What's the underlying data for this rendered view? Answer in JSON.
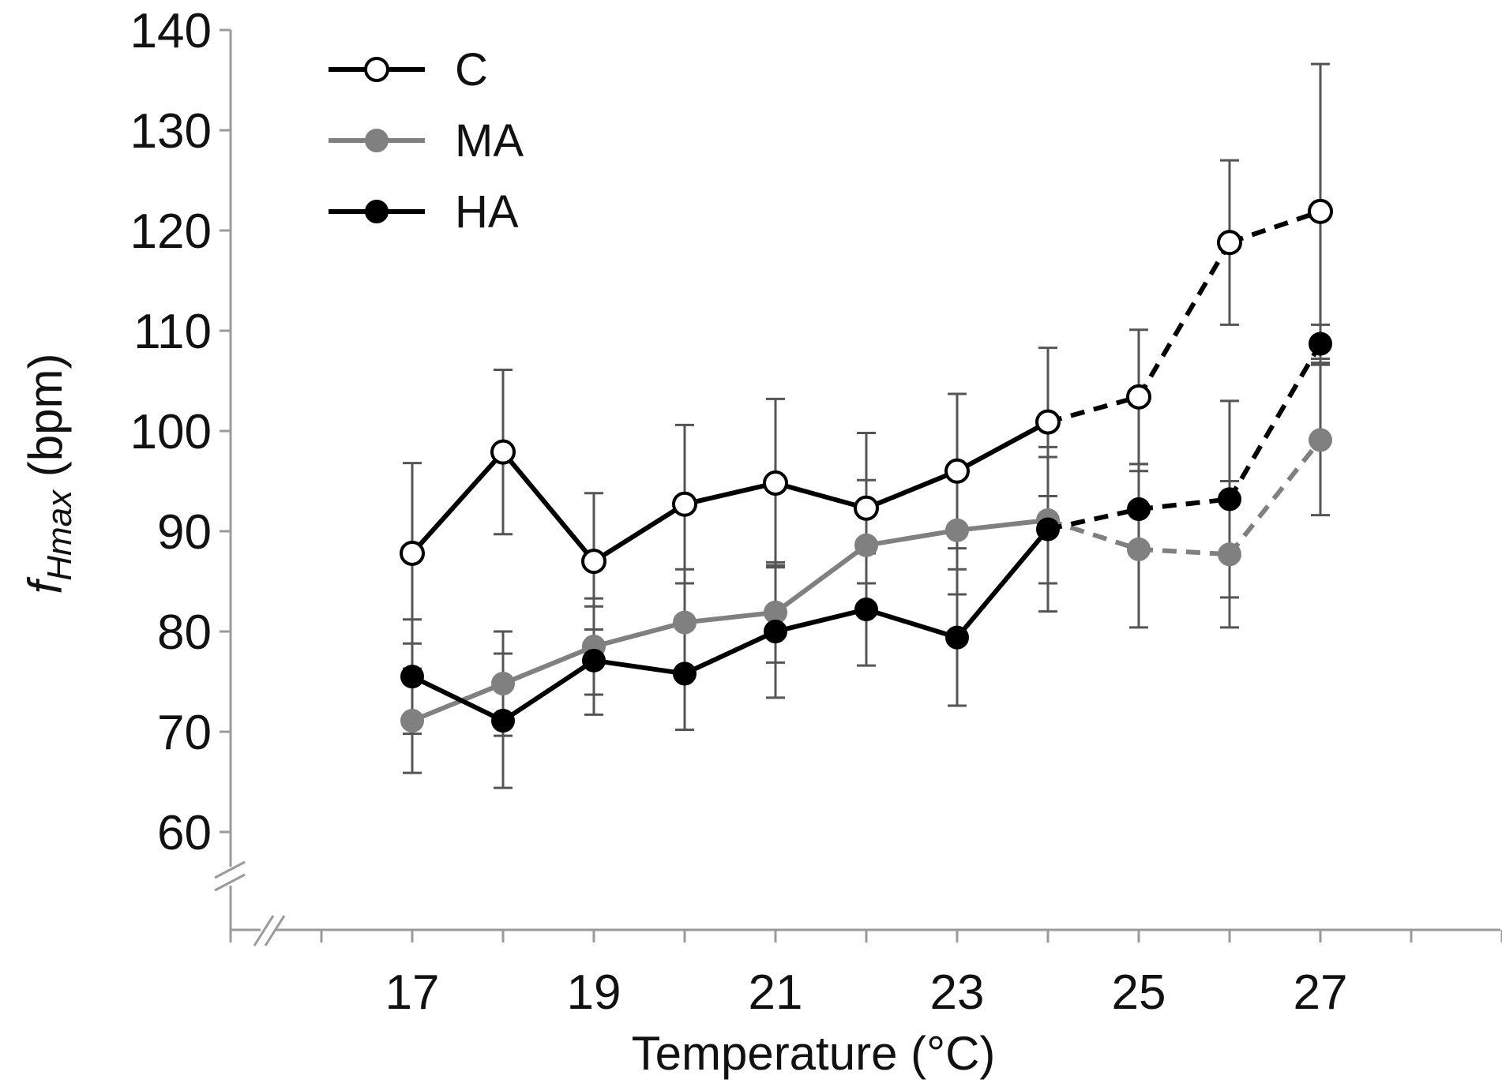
{
  "chart_data": {
    "type": "line",
    "title": "",
    "xlabel": "Temperature (°C)",
    "ylabel": {
      "base": "f",
      "subscript": "Hmax",
      "unit": " (bpm)"
    },
    "x": [
      17,
      18,
      19,
      20,
      21,
      22,
      23,
      24,
      25,
      26,
      27
    ],
    "x_ticks": [
      17,
      19,
      21,
      23,
      25,
      27
    ],
    "x_tick_labels": [
      "17",
      "19",
      "21",
      "23",
      "25",
      "27"
    ],
    "xlim": [
      15,
      29
    ],
    "y_ticks": [
      60,
      70,
      80,
      90,
      100,
      110,
      120,
      130,
      140
    ],
    "y_tick_labels": [
      "60",
      "70",
      "80",
      "90",
      "100",
      "110",
      "120",
      "130",
      "140"
    ],
    "ylim": [
      50,
      140
    ],
    "axis_breaks": [
      "y",
      "x"
    ],
    "grid": false,
    "legend_position": "top-left",
    "dashed_from_x": 24,
    "series": [
      {
        "name": "C",
        "marker": "open-circle",
        "color": "#000000",
        "values": [
          87.8,
          97.9,
          87.0,
          92.7,
          94.8,
          92.3,
          96.0,
          100.9,
          103.4,
          118.8,
          121.9
        ],
        "errors": [
          9.0,
          8.2,
          6.8,
          7.9,
          8.4,
          7.5,
          7.7,
          7.4,
          6.7,
          8.2,
          14.7
        ]
      },
      {
        "name": "MA",
        "marker": "filled-circle",
        "color": "#808080",
        "values": [
          71.1,
          74.8,
          78.5,
          80.9,
          81.9,
          88.6,
          90.1,
          91.1,
          88.2,
          87.7,
          99.1
        ],
        "errors": [
          5.2,
          5.2,
          4.8,
          5.3,
          5.0,
          6.5,
          6.4,
          6.3,
          7.8,
          7.3,
          7.5
        ]
      },
      {
        "name": "HA",
        "marker": "filled-circle",
        "color": "#000000",
        "values": [
          75.5,
          71.1,
          77.1,
          75.8,
          80.0,
          82.2,
          79.4,
          90.2,
          92.2,
          93.2,
          108.7
        ],
        "errors": [
          5.7,
          6.7,
          5.4,
          5.6,
          6.6,
          5.6,
          6.8,
          8.2,
          4.5,
          9.8,
          1.9
        ]
      }
    ],
    "colors": {
      "axis": "#9a9a9a",
      "errorbar": "#555555",
      "marker_open_fill": "#ffffff"
    }
  }
}
